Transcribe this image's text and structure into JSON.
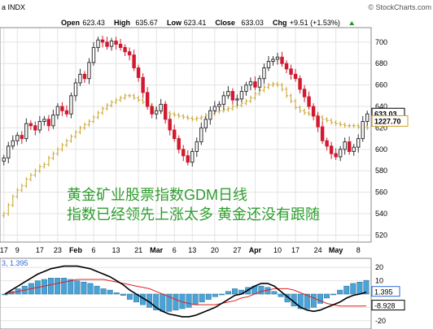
{
  "header": {
    "symbol": "a INDX",
    "watermark": "© StockCharts.com",
    "quote": [
      {
        "label": "Open",
        "value": "623.43"
      },
      {
        "label": "High",
        "value": "635.67"
      },
      {
        "label": "Low",
        "value": "623.41"
      },
      {
        "label": "Close",
        "value": "633.03"
      },
      {
        "label": "Chg",
        "value": "+9.51 (+1.53%)"
      }
    ],
    "chg_icon": "triangle-up-icon"
  },
  "annotation": {
    "line1": "黄金矿业股票指数GDM日线",
    "line2": "指数已经领先上涨太多 黄金还没有跟随",
    "color": "#2e9e2e"
  },
  "colors": {
    "up": "#333333",
    "down": "#d11a2f",
    "gold": "#c9a227",
    "grid": "#e3e3e3",
    "macd_line": "#000000",
    "signal_line": "#e02020",
    "histogram": "#4aa3d6"
  },
  "chart_data": [
    {
      "type": "candlestick",
      "title": "",
      "ylabel": "",
      "ylim": [
        515,
        712
      ],
      "yticks": [
        520,
        540,
        560,
        580,
        600,
        620,
        640,
        660,
        680,
        700
      ],
      "x_labels": [
        {
          "label": "17",
          "bar": 0
        },
        {
          "label": "9",
          "bar": 3
        },
        {
          "label": "17",
          "bar": 8
        },
        {
          "label": "23",
          "bar": 12
        },
        {
          "label": "Feb",
          "bar": 16
        },
        {
          "label": "6",
          "bar": 20
        },
        {
          "label": "13",
          "bar": 25
        },
        {
          "label": "21",
          "bar": 30
        },
        {
          "label": "Mar",
          "bar": 34
        },
        {
          "label": "6",
          "bar": 38
        },
        {
          "label": "13",
          "bar": 42
        },
        {
          "label": "20",
          "bar": 47
        },
        {
          "label": "27",
          "bar": 52
        },
        {
          "label": "Apr",
          "bar": 56
        },
        {
          "label": "10",
          "bar": 61
        },
        {
          "label": "17",
          "bar": 65
        },
        {
          "label": "24",
          "bar": 70
        },
        {
          "label": "May",
          "bar": 74
        },
        {
          "label": "8",
          "bar": 79
        }
      ],
      "series": [
        {
          "name": "",
          "closes": [
            592,
            603,
            608,
            613,
            610,
            624,
            622,
            618,
            626,
            628,
            622,
            632,
            640,
            636,
            633,
            650,
            662,
            670,
            666,
            681,
            695,
            702,
            700,
            696,
            701,
            698,
            695,
            691,
            688,
            676,
            667,
            653,
            640,
            633,
            636,
            642,
            628,
            618,
            610,
            600,
            594,
            588,
            598,
            607,
            620,
            628,
            636,
            640,
            642,
            650,
            654,
            646,
            647,
            654,
            660,
            663,
            658,
            666,
            676,
            682,
            684,
            686,
            680,
            675,
            670,
            666,
            656,
            649,
            640,
            631,
            621,
            608,
            603,
            596,
            593,
            600,
            607,
            598,
            602,
            610,
            626,
            633
          ],
          "tags": {
            "up_last_price": "633.03"
          }
        },
        {
          "name": "",
          "values": [
            540,
            548,
            556,
            562,
            566,
            572,
            576,
            580,
            584,
            586,
            592,
            596,
            600,
            604,
            608,
            612,
            616,
            620,
            623,
            626,
            630,
            634,
            638,
            641,
            644,
            646,
            648,
            650,
            650,
            648,
            646,
            644,
            641,
            638,
            636,
            635,
            634,
            633,
            632,
            631,
            630,
            629,
            628,
            629,
            630,
            632,
            633,
            635,
            636,
            637,
            638,
            640,
            641,
            643,
            645,
            648,
            652,
            655,
            658,
            660,
            661,
            660,
            656,
            650,
            645,
            639,
            636,
            634,
            633,
            632,
            630,
            628,
            627,
            625,
            624,
            623,
            622,
            622,
            622,
            621,
            621,
            620
          ],
          "last_label": "1227.70"
        }
      ]
    },
    {
      "type": "macd",
      "ylim": [
        -25,
        25
      ],
      "yticks": [
        20,
        10,
        0,
        -10,
        -20
      ],
      "top_label": "3, 1.395",
      "macd_last": "1.395",
      "signal_last": "-8.928",
      "macd": [
        0,
        3,
        6,
        9,
        12,
        15,
        17,
        19,
        20,
        21,
        21,
        21,
        20,
        19,
        17,
        15,
        13,
        10,
        7,
        3,
        0,
        -3,
        -6,
        -10,
        -13,
        -15,
        -16,
        -17,
        -17,
        -16,
        -14,
        -12,
        -10,
        -7,
        -4,
        -1,
        0,
        3,
        6,
        8,
        8,
        6,
        2,
        -2,
        -6,
        -10,
        -12,
        -13,
        -12,
        -10,
        -8,
        -6,
        -3,
        -1,
        0,
        1.4
      ],
      "signal": [
        0,
        1,
        2,
        3,
        4,
        5,
        6,
        7,
        8,
        9,
        10,
        11,
        11,
        11,
        11,
        11,
        10,
        9,
        8,
        7,
        6,
        5,
        4,
        2,
        0,
        -2,
        -4,
        -6,
        -7,
        -8,
        -8,
        -8,
        -8,
        -7,
        -6,
        -5,
        -3,
        -2,
        0,
        2,
        3,
        4,
        4,
        4,
        3,
        1,
        -1,
        -3,
        -5,
        -7,
        -8,
        -9,
        -9,
        -9,
        -9,
        -8.9
      ]
    }
  ]
}
